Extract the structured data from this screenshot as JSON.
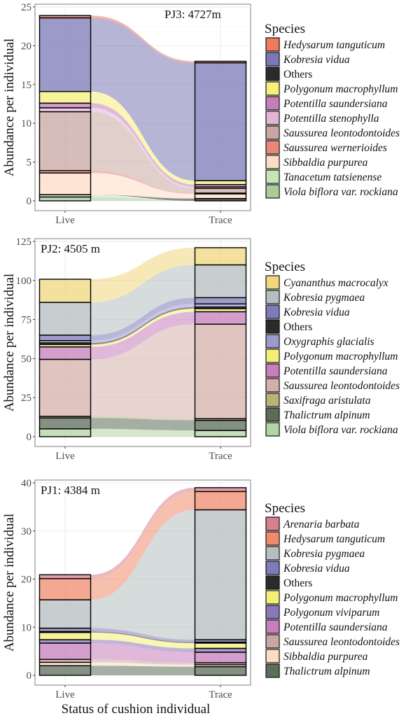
{
  "chart_data": [
    {
      "type": "area",
      "subtype": "alluvial-stacked-bar",
      "title": "PJ3: 4727m",
      "xlabel": "",
      "ylabel": "Abundance per individual",
      "categories": [
        "Live",
        "Trace"
      ],
      "yticks": [
        0,
        5,
        10,
        15,
        20,
        25
      ],
      "ylim": [
        0,
        25
      ],
      "grid": true,
      "legend_title": "Species",
      "legend_position": "right",
      "series": [
        {
          "name": "Viola biflora var. rockiana",
          "color": "#a9cc9a",
          "italic": true,
          "values": [
            0.5,
            0.0
          ]
        },
        {
          "name": "Tanacetum tatsienense",
          "color": "#c7e3b8",
          "italic": true,
          "values": [
            0.3,
            0.0
          ]
        },
        {
          "name": "Others",
          "color": "#2b2b2b",
          "italic": false,
          "values": [
            0.0,
            0.3
          ]
        },
        {
          "name": "Sibbaldia purpurea",
          "color": "#fddcc4",
          "italic": true,
          "values": [
            2.8,
            0.6
          ]
        },
        {
          "name": "Saussurea wernerioides",
          "color": "#e8877a",
          "italic": true,
          "values": [
            0.3,
            0.1
          ]
        },
        {
          "name": "Saussurea leontodontoides",
          "color": "#c9a7a2",
          "italic": true,
          "values": [
            7.6,
            0.6
          ]
        },
        {
          "name": "Potentilla stenophylla",
          "color": "#e3b5d6",
          "italic": true,
          "values": [
            0.5,
            0.2
          ]
        },
        {
          "name": "Potentilla saundersiana",
          "color": "#c47fb9",
          "italic": true,
          "values": [
            0.6,
            0.3
          ]
        },
        {
          "name": "Polygonum macrophyllum",
          "color": "#f6ef7a",
          "italic": true,
          "values": [
            1.5,
            0.5
          ]
        },
        {
          "name": "Kobresia vidua",
          "color": "#7b78b5",
          "italic": true,
          "values": [
            9.5,
            15.2
          ]
        },
        {
          "name": "Hedysarum tanguticum",
          "color": "#ef7a5e",
          "italic": true,
          "values": [
            0.3,
            0.2
          ]
        }
      ],
      "legend_order": [
        "Hedysarum tanguticum",
        "Kobresia vidua",
        "Others",
        "Polygonum macrophyllum",
        "Potentilla saundersiana",
        "Potentilla stenophylla",
        "Saussurea leontodontoides",
        "Saussurea wernerioides",
        "Sibbaldia purpurea",
        "Tanacetum tatsienense",
        "Viola biflora var. rockiana"
      ],
      "label_position": "top-right"
    },
    {
      "type": "area",
      "subtype": "alluvial-stacked-bar",
      "title": "PJ2: 4505 m",
      "xlabel": "",
      "ylabel": "Abundance per individual",
      "categories": [
        "Live",
        "Trace"
      ],
      "yticks": [
        0,
        25,
        50,
        75,
        100,
        125
      ],
      "ylim": [
        0,
        125
      ],
      "grid": true,
      "legend_title": "Species",
      "legend_position": "right",
      "series": [
        {
          "name": "Viola biflora var. rockiana",
          "color": "#b3d3a3",
          "italic": true,
          "values": [
            5,
            4
          ]
        },
        {
          "name": "Thalictrum alpinum",
          "color": "#5a6b58",
          "italic": true,
          "values": [
            7,
            6.5
          ]
        },
        {
          "name": "Saxifraga aristulata",
          "color": "#b8b378",
          "italic": true,
          "values": [
            1,
            1
          ]
        },
        {
          "name": "Saussurea leontodontoides",
          "color": "#d5b0ab",
          "italic": true,
          "values": [
            36.5,
            60.5
          ]
        },
        {
          "name": "Potentilla saundersiana",
          "color": "#c67fbb",
          "italic": true,
          "values": [
            8,
            8
          ]
        },
        {
          "name": "Polygonum macrophyllum",
          "color": "#f5ee76",
          "italic": true,
          "values": [
            1.5,
            2
          ]
        },
        {
          "name": "Others",
          "color": "#2b2b2b",
          "italic": false,
          "values": [
            1,
            1
          ]
        },
        {
          "name": "Oxygraphis glacialis",
          "color": "#9d99cf",
          "italic": true,
          "values": [
            1.5,
            2
          ]
        },
        {
          "name": "Kobresia vidua",
          "color": "#7f7bb8",
          "italic": true,
          "values": [
            3.5,
            4
          ]
        },
        {
          "name": "Kobresia pygmaea",
          "color": "#b5bec0",
          "italic": true,
          "values": [
            21,
            21
          ]
        },
        {
          "name": "Cyananthus macrocalyx",
          "color": "#efd77c",
          "italic": true,
          "values": [
            14.8,
            11
          ]
        }
      ],
      "legend_order": [
        "Cyananthus macrocalyx",
        "Kobresia pygmaea",
        "Kobresia vidua",
        "Others",
        "Oxygraphis glacialis",
        "Polygonum macrophyllum",
        "Potentilla saundersiana",
        "Saussurea leontodontoides",
        "Saxifraga aristulata",
        "Thalictrum alpinum",
        "Viola biflora var. rockiana"
      ],
      "label_position": "top-left"
    },
    {
      "type": "area",
      "subtype": "alluvial-stacked-bar",
      "title": "PJ1: 4384 m",
      "xlabel": "Status of cushion individual",
      "ylabel": "Abundance per individual",
      "categories": [
        "Live",
        "Trace"
      ],
      "yticks": [
        0,
        10,
        20,
        30,
        40
      ],
      "ylim": [
        0,
        40
      ],
      "grid": true,
      "legend_title": "Species",
      "legend_position": "right",
      "series": [
        {
          "name": "Thalictrum alpinum",
          "color": "#5c6e5a",
          "italic": true,
          "values": [
            2.0,
            1.8
          ]
        },
        {
          "name": "Sibbaldia purpurea",
          "color": "#fddcc4",
          "italic": true,
          "values": [
            0.7,
            0.4
          ]
        },
        {
          "name": "Saussurea leontodontoides",
          "color": "#c9a7a2",
          "italic": true,
          "values": [
            0.6,
            0.4
          ]
        },
        {
          "name": "Potentilla saundersiana",
          "color": "#c67fbb",
          "italic": true,
          "values": [
            3.4,
            2.2
          ]
        },
        {
          "name": "Polygonum viviparum",
          "color": "#8b78b8",
          "italic": true,
          "values": [
            0.7,
            0.8
          ]
        },
        {
          "name": "Polygonum macrophyllum",
          "color": "#f5ee76",
          "italic": true,
          "values": [
            1.5,
            1.1
          ]
        },
        {
          "name": "Others",
          "color": "#2b2b2b",
          "italic": false,
          "values": [
            0.2,
            0.2
          ]
        },
        {
          "name": "Kobresia vidua",
          "color": "#7f7bb8",
          "italic": true,
          "values": [
            0.7,
            0.5
          ]
        },
        {
          "name": "Kobresia pygmaea",
          "color": "#b5bec0",
          "italic": true,
          "values": [
            5.9,
            27.0
          ]
        },
        {
          "name": "Hedysarum tanguticum",
          "color": "#f08a6c",
          "italic": true,
          "values": [
            4.4,
            3.8
          ]
        },
        {
          "name": "Arenaria barbata",
          "color": "#d9808f",
          "italic": true,
          "values": [
            0.8,
            0.8
          ]
        }
      ],
      "legend_order": [
        "Arenaria barbata",
        "Hedysarum tanguticum",
        "Kobresia pygmaea",
        "Kobresia vidua",
        "Others",
        "Polygonum macrophyllum",
        "Polygonum viviparum",
        "Potentilla saundersiana",
        "Saussurea leontodontoides",
        "Sibbaldia purpurea",
        "Thalictrum alpinum"
      ],
      "label_position": "top-left"
    }
  ]
}
